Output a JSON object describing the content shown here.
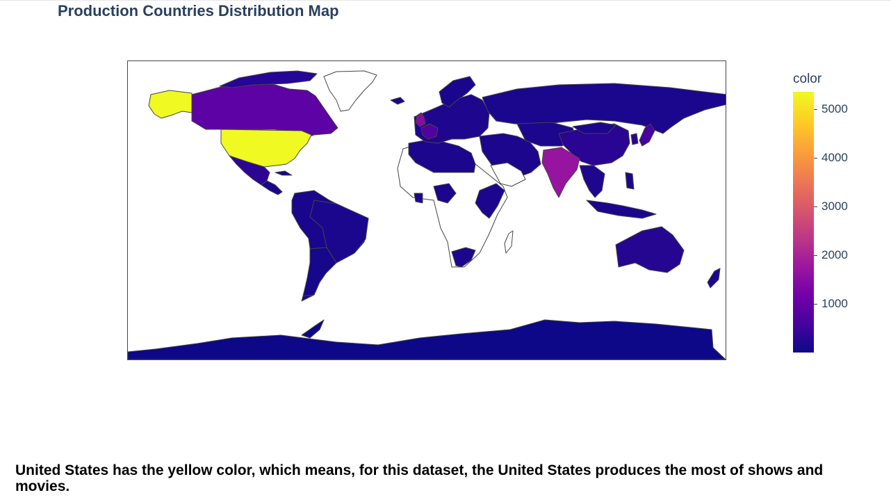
{
  "title": "Production Countries Distribution Map",
  "note": "United States has the yellow color, which means, for this dataset, the United States produces the most of shows and movies.",
  "colorbar": {
    "title": "color",
    "colorscale": "Plasma",
    "range": [
      1,
      5350
    ],
    "ticks": [
      1000,
      2000,
      3000,
      4000,
      5000
    ],
    "tick_labels": [
      "1000",
      "2000",
      "3000",
      "4000",
      "5000"
    ],
    "stops": [
      "#0d0887",
      "#46039f",
      "#7201a8",
      "#9c179e",
      "#bd3786",
      "#d8576b",
      "#ed7953",
      "#fb9f3a",
      "#fdca26",
      "#f0f921"
    ]
  },
  "map": {
    "projection": "equirectangular",
    "missing_fill": "#ffffff",
    "border_color": "#444444",
    "countries": [
      {
        "name": "United States",
        "value": 5350
      },
      {
        "name": "India",
        "value": 1700
      },
      {
        "name": "United Kingdom",
        "value": 1500
      },
      {
        "name": "Canada",
        "value": 900
      },
      {
        "name": "France",
        "value": 750
      },
      {
        "name": "Japan",
        "value": 600
      },
      {
        "name": "China",
        "value": 300
      },
      {
        "name": "Russia",
        "value": 150
      },
      {
        "name": "Mexico",
        "value": 330
      },
      {
        "name": "Brazil",
        "value": 150
      },
      {
        "name": "Argentina",
        "value": 110
      },
      {
        "name": "Australia",
        "value": 250
      },
      {
        "name": "Antarctica",
        "value": 1
      }
    ]
  }
}
